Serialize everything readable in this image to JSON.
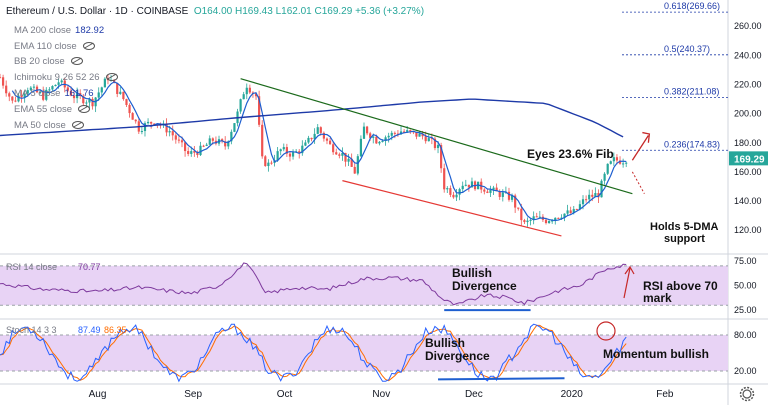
{
  "header": {
    "symbol": "Ethereum / U.S. Dollar · 1D · COINBASE",
    "ohlc": "O164.00 H169.43 L162.01 C169.29 +5.36 (+3.27%)"
  },
  "indicators": [
    {
      "label": "MA 200 close",
      "value": "182.92",
      "color": "#131722",
      "value_color": "#1e3aa8"
    },
    {
      "label": "EMA 110 close",
      "value": "",
      "color": "#787b86"
    },
    {
      "label": "BB 20 close",
      "value": "",
      "color": "#787b86"
    },
    {
      "label": "Ichimoku 9 26 52 26",
      "value": "",
      "color": "#787b86"
    },
    {
      "label": "MA 5 close",
      "value": "161.76",
      "color": "#131722",
      "value_color": "#1e3aa8"
    },
    {
      "label": "EMA 55 close",
      "value": "",
      "color": "#787b86"
    },
    {
      "label": "MA 50 close",
      "value": "",
      "color": "#787b86"
    }
  ],
  "colors": {
    "up": "#26a69a",
    "down": "#ef5350",
    "ma200": "#1e3aa8",
    "ma5": "#1e5fd0",
    "trend": "#1b6a1b",
    "support": "#e53935",
    "rsi": "#7e3a9e",
    "stoch_k": "#2962ff",
    "stoch_d": "#ff6d00",
    "band": "#e8d3f5",
    "fib": "#1e3aa8",
    "note": "#c62828"
  },
  "chart_data": [
    {
      "type": "candlestick",
      "title": "Ethereum / U.S. Dollar · 1D · COINBASE",
      "ylim": [
        105,
        278
      ],
      "y_ticks": [
        120,
        140,
        160,
        180,
        200,
        220,
        240,
        260
      ],
      "x_ticks": [
        "Aug",
        "Sep",
        "Oct",
        "Nov",
        "Dec",
        "2020",
        "Feb"
      ],
      "last_price": "169.29",
      "fib_levels": [
        {
          "label": "0.618(269.66)",
          "value": 269.66
        },
        {
          "label": "0.5(240.37)",
          "value": 240.37
        },
        {
          "label": "0.382(211.08)",
          "value": 211.08
        },
        {
          "label": "0.236(174.83)",
          "value": 174.83
        }
      ],
      "close_anchors": [
        [
          "2019-07-01",
          225
        ],
        [
          "2019-07-05",
          208
        ],
        [
          "2019-07-10",
          218
        ],
        [
          "2019-07-15",
          212
        ],
        [
          "2019-07-20",
          222
        ],
        [
          "2019-07-25",
          212
        ],
        [
          "2019-07-31",
          208
        ],
        [
          "2019-08-05",
          225
        ],
        [
          "2019-08-10",
          210
        ],
        [
          "2019-08-15",
          190
        ],
        [
          "2019-08-20",
          195
        ],
        [
          "2019-08-25",
          188
        ],
        [
          "2019-08-31",
          172
        ],
        [
          "2019-09-04",
          175
        ],
        [
          "2019-09-08",
          182
        ],
        [
          "2019-09-12",
          178
        ],
        [
          "2019-09-16",
          200
        ],
        [
          "2019-09-18",
          215
        ],
        [
          "2019-09-19",
          220
        ],
        [
          "2019-09-22",
          212
        ],
        [
          "2019-09-24",
          168
        ],
        [
          "2019-09-26",
          165
        ],
        [
          "2019-09-30",
          175
        ],
        [
          "2019-10-04",
          172
        ],
        [
          "2019-10-08",
          178
        ],
        [
          "2019-10-12",
          190
        ],
        [
          "2019-10-16",
          178
        ],
        [
          "2019-10-20",
          172
        ],
        [
          "2019-10-24",
          160
        ],
        [
          "2019-10-27",
          190
        ],
        [
          "2019-10-31",
          182
        ],
        [
          "2019-11-04",
          185
        ],
        [
          "2019-11-08",
          188
        ],
        [
          "2019-11-12",
          186
        ],
        [
          "2019-11-16",
          184
        ],
        [
          "2019-11-20",
          176
        ],
        [
          "2019-11-22",
          150
        ],
        [
          "2019-11-25",
          145
        ],
        [
          "2019-11-28",
          152
        ],
        [
          "2019-12-02",
          151
        ],
        [
          "2019-12-06",
          148
        ],
        [
          "2019-12-10",
          145
        ],
        [
          "2019-12-14",
          142
        ],
        [
          "2019-12-16",
          132
        ],
        [
          "2019-12-18",
          124
        ],
        [
          "2019-12-21",
          128
        ],
        [
          "2019-12-25",
          127
        ],
        [
          "2019-12-30",
          131
        ],
        [
          "2020-01-03",
          132
        ],
        [
          "2020-01-07",
          142
        ],
        [
          "2020-01-11",
          145
        ],
        [
          "2020-01-14",
          163
        ],
        [
          "2020-01-16",
          168
        ],
        [
          "2020-01-19",
          168
        ],
        [
          "2020-01-20",
          169.29
        ]
      ],
      "ma200_anchors": [
        [
          "2019-07-01",
          185
        ],
        [
          "2019-08-15",
          191
        ],
        [
          "2019-09-15",
          197
        ],
        [
          "2019-10-15",
          202
        ],
        [
          "2019-11-15",
          208
        ],
        [
          "2019-12-01",
          210
        ],
        [
          "2019-12-25",
          207
        ],
        [
          "2020-01-10",
          194
        ],
        [
          "2020-01-20",
          182.92
        ]
      ],
      "trendline": {
        "from": [
          "2019-09-17",
          224
        ],
        "to": [
          "2020-01-22",
          145
        ]
      },
      "support_line": {
        "from": [
          "2019-10-20",
          154
        ],
        "to": [
          "2019-12-30",
          116
        ]
      },
      "annotations": [
        "Eyes 23.6% Fib",
        "Holds 5-DMA",
        "support"
      ]
    },
    {
      "type": "line",
      "title": "RSI 14 close",
      "value": "70.77",
      "ylim": [
        18,
        80
      ],
      "y_ticks": [
        25.0,
        50.0,
        75.0
      ],
      "band": [
        30,
        70
      ],
      "anchors": [
        [
          "2019-07-01",
          52
        ],
        [
          "2019-07-15",
          46
        ],
        [
          "2019-08-01",
          44
        ],
        [
          "2019-08-15",
          48
        ],
        [
          "2019-09-01",
          42
        ],
        [
          "2019-09-10",
          50
        ],
        [
          "2019-09-19",
          74
        ],
        [
          "2019-09-25",
          42
        ],
        [
          "2019-10-05",
          48
        ],
        [
          "2019-10-15",
          46
        ],
        [
          "2019-10-27",
          57
        ],
        [
          "2019-11-05",
          58
        ],
        [
          "2019-11-15",
          55
        ],
        [
          "2019-11-22",
          35
        ],
        [
          "2019-11-26",
          30
        ],
        [
          "2019-12-05",
          40
        ],
        [
          "2019-12-12",
          38
        ],
        [
          "2019-12-18",
          32
        ],
        [
          "2019-12-28",
          44
        ],
        [
          "2020-01-05",
          50
        ],
        [
          "2020-01-14",
          68
        ],
        [
          "2020-01-20",
          70.77
        ]
      ],
      "annotations": [
        "Bullish",
        "Divergence",
        "RSI above 70",
        "mark"
      ]
    },
    {
      "type": "line",
      "title": "Stoch 14 3 3",
      "k": "87.49",
      "d": "86.35",
      "ylim": [
        0,
        105
      ],
      "y_ticks": [
        20.0,
        80.0
      ],
      "band": [
        20,
        80
      ],
      "annotations": [
        "Bullish",
        "Divergence",
        "Momentum bullish"
      ]
    }
  ]
}
